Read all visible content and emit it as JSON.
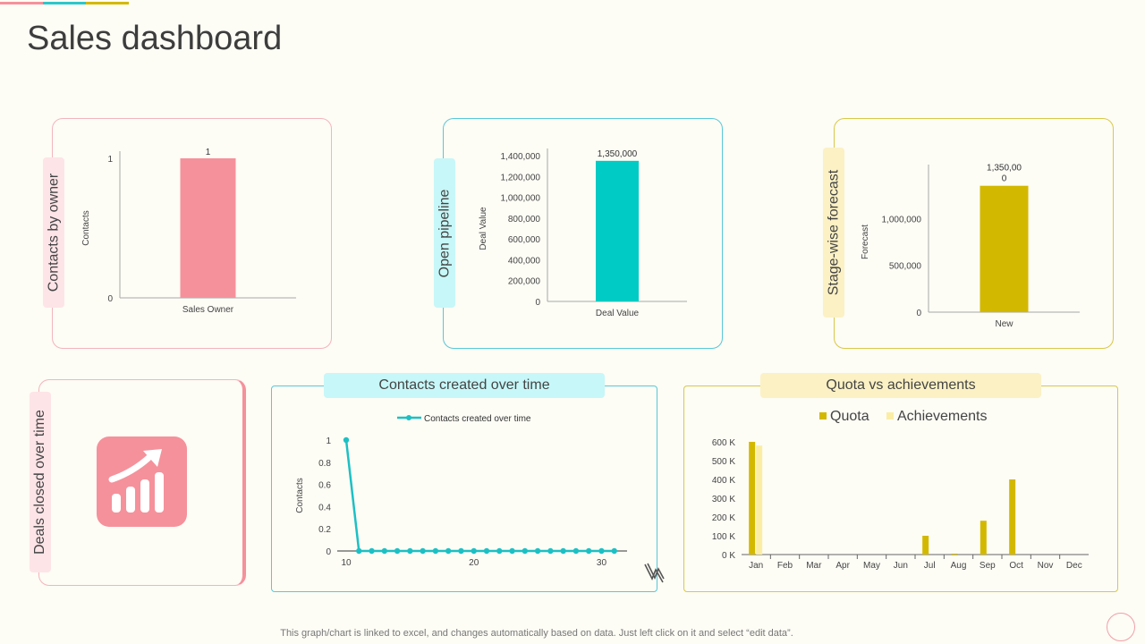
{
  "page_title": "Sales dashboard",
  "footer_note": "This graph/chart is linked to excel,  and changes automatically based on data. Just left click on it and select “edit data”.",
  "colors": {
    "pink": "#f5919b",
    "pink_border": "#f2b5bd",
    "pink_tab": "#fde4e7",
    "teal": "#00cbc4",
    "teal_border": "#57c9d9",
    "teal_tab": "#c7f7f8",
    "gold": "#d3b800",
    "gold_border": "#d8c94a",
    "gold_tab": "#fbf1c4",
    "achievement": "#fbeea4"
  },
  "cards": {
    "contacts_by_owner": {
      "tab_label": "Contacts by owner"
    },
    "open_pipeline": {
      "tab_label": "Open pipeline"
    },
    "stage_forecast": {
      "tab_label": "Stage-wise forecast"
    },
    "deals_closed": {
      "tab_label": "Deals closed over time",
      "icon": "growth-chart-icon"
    },
    "contacts_time": {
      "tab_label": "Contacts created over time"
    },
    "quota": {
      "tab_label": "Quota vs achievements"
    }
  },
  "chart_data": [
    {
      "id": "contacts_by_owner",
      "type": "bar",
      "categories": [
        "Sales Owner"
      ],
      "values": [
        1
      ],
      "data_labels": [
        "1"
      ],
      "ylabel": "Contacts",
      "ylim": [
        0,
        1
      ],
      "yticks": [
        0,
        1
      ],
      "ytick_labels": [
        "0",
        "1"
      ],
      "color": "#f5919b"
    },
    {
      "id": "open_pipeline",
      "type": "bar",
      "categories": [
        "Deal Value"
      ],
      "values": [
        1350000
      ],
      "data_labels": [
        "1,350,000"
      ],
      "ylabel": "Deal Value",
      "ylim": [
        0,
        1400000
      ],
      "yticks": [
        0,
        200000,
        400000,
        600000,
        800000,
        1000000,
        1200000,
        1400000
      ],
      "ytick_labels": [
        "0",
        "200,000",
        "400,000",
        "600,000",
        "800,000",
        "1,000,000",
        "1,200,000",
        "1,400,000"
      ],
      "color": "#00cbc4"
    },
    {
      "id": "stage_forecast",
      "type": "bar",
      "categories": [
        "New"
      ],
      "values": [
        1350000
      ],
      "data_labels": [
        "1,350,00",
        "0"
      ],
      "ylabel": "Forecast",
      "ylim": [
        0,
        1500000
      ],
      "yticks": [
        0,
        500000,
        1000000
      ],
      "ytick_labels": [
        "0",
        "500,000",
        "1,000,000"
      ],
      "color": "#d3b800"
    },
    {
      "id": "contacts_time",
      "type": "line",
      "legend": [
        "Contacts created over time"
      ],
      "legend_position": "top",
      "series": [
        {
          "name": "Contacts created over time",
          "x": [
            10,
            11,
            12,
            13,
            14,
            15,
            16,
            17,
            18,
            19,
            20,
            21,
            22,
            23,
            24,
            25,
            26,
            27,
            28,
            29,
            30,
            31
          ],
          "values": [
            1,
            0,
            0,
            0,
            0,
            0,
            0,
            0,
            0,
            0,
            0,
            0,
            0,
            0,
            0,
            0,
            0,
            0,
            0,
            0,
            0,
            0
          ]
        }
      ],
      "ylabel": "Contacts",
      "xlim": [
        10,
        32
      ],
      "ylim": [
        0,
        1
      ],
      "xticks": [
        10,
        20,
        30
      ],
      "xtick_labels": [
        "10",
        "20",
        "30"
      ],
      "yticks": [
        0,
        0.2,
        0.4,
        0.6,
        0.8,
        1
      ],
      "ytick_labels": [
        "0",
        "0.2",
        "0.4",
        "0.6",
        "0.8",
        "1"
      ],
      "color": "#1cc0c4"
    },
    {
      "id": "quota",
      "type": "bar",
      "legend": [
        "Quota",
        "Achievements"
      ],
      "legend_position": "top",
      "categories": [
        "Jan",
        "Feb",
        "Mar",
        "Apr",
        "May",
        "Jun",
        "Jul",
        "Aug",
        "Sep",
        "Oct",
        "Nov",
        "Dec"
      ],
      "series": [
        {
          "name": "Quota",
          "values": [
            600000,
            0,
            0,
            0,
            0,
            0,
            100000,
            5000,
            180000,
            400000,
            0,
            0
          ],
          "color": "#d3b800"
        },
        {
          "name": "Achievements",
          "values": [
            580000,
            0,
            0,
            0,
            0,
            0,
            0,
            0,
            0,
            0,
            0,
            0
          ],
          "color": "#fbeea4"
        }
      ],
      "ylim": [
        0,
        600000
      ],
      "yticks": [
        0,
        100000,
        200000,
        300000,
        400000,
        500000,
        600000
      ],
      "ytick_labels": [
        "0 K",
        "100 K",
        "200 K",
        "300 K",
        "400 K",
        "500 K",
        "600 K"
      ]
    }
  ]
}
